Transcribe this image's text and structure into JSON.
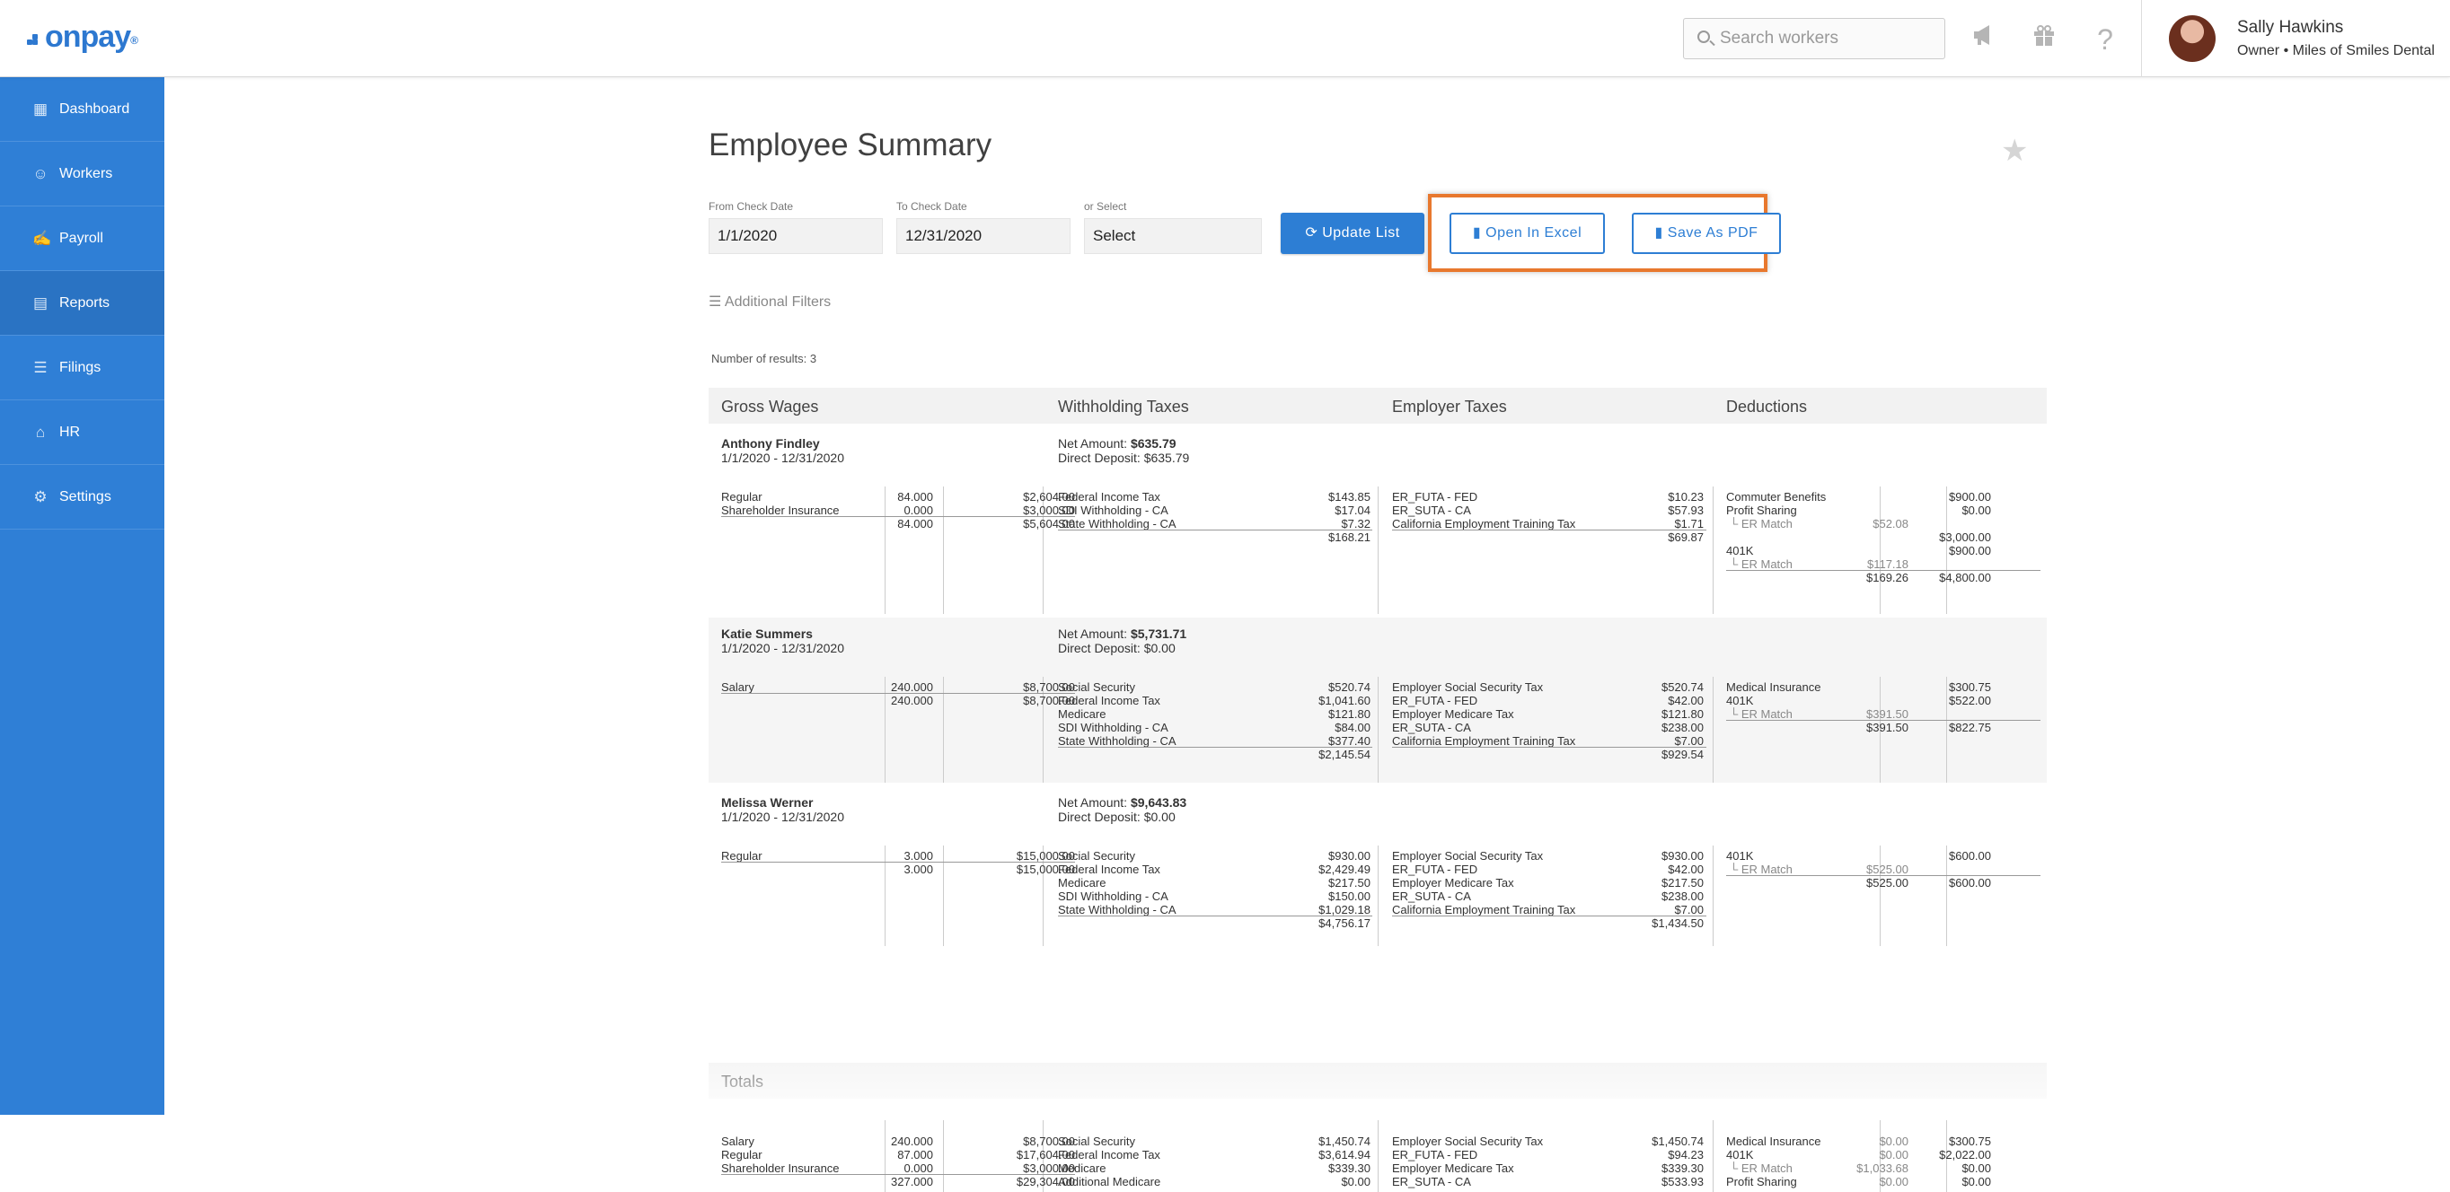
{
  "app": {
    "logo": "onpay",
    "logo_reg": "®"
  },
  "topbar": {
    "search_placeholder": "Search workers",
    "icons": [
      "megaphone-icon",
      "gift-icon",
      "help-icon"
    ],
    "user_name": "Sally Hawkins",
    "user_role": "Owner • Miles of Smiles Dental"
  },
  "sidebar": {
    "items": [
      {
        "label": "Dashboard",
        "icon": "dashboard-icon"
      },
      {
        "label": "Workers",
        "icon": "workers-icon"
      },
      {
        "label": "Payroll",
        "icon": "payroll-icon"
      },
      {
        "label": "Reports",
        "icon": "reports-icon",
        "active": true
      },
      {
        "label": "Filings",
        "icon": "filings-icon"
      },
      {
        "label": "HR",
        "icon": "hr-icon"
      },
      {
        "label": "Settings",
        "icon": "gear-icon"
      }
    ]
  },
  "page": {
    "title": "Employee Summary"
  },
  "filters": {
    "from_label": "From Check Date",
    "from_value": "1/1/2020",
    "to_label": "To Check Date",
    "to_value": "12/31/2020",
    "select_label": "or Select",
    "select_value": "Select",
    "update_label": "Update List",
    "excel_label": "Open In Excel",
    "pdf_label": "Save As PDF",
    "additional_filters": "Additional Filters",
    "results": "Number of results: 3"
  },
  "headers": {
    "gross": "Gross Wages",
    "withholding": "Withholding Taxes",
    "employer": "Employer Taxes",
    "deductions": "Deductions",
    "totals": "Totals"
  },
  "employees": [
    {
      "name": "Anthony Findley",
      "dates": "1/1/2020  -  12/31/2020",
      "net_label": "Net Amount: ",
      "net": "$635.79",
      "dd": "Direct Deposit: $635.79",
      "wages": [
        [
          "Regular",
          "84.000",
          "$2,604.00"
        ],
        [
          "Shareholder Insurance",
          "0.000",
          "$3,000.00"
        ]
      ],
      "wages_total": [
        "84.000",
        "$5,604.00"
      ],
      "withholding": [
        [
          "Federal Income Tax",
          "$143.85"
        ],
        [
          "SDI Withholding - CA",
          "$17.04"
        ],
        [
          "State Withholding - CA",
          "$7.32"
        ]
      ],
      "withholding_total": "$168.21",
      "employer": [
        [
          "ER_FUTA - FED",
          "$10.23"
        ],
        [
          "ER_SUTA - CA",
          "$57.93"
        ],
        [
          "California Employment Training Tax",
          "$1.71"
        ]
      ],
      "employer_total": "$69.87",
      "deductions": [
        [
          "Commuter Benefits",
          "",
          "$900.00"
        ],
        [
          "Profit Sharing",
          "",
          "$0.00"
        ],
        [
          "└ ER Match",
          "$52.08",
          ""
        ],
        [
          "",
          "",
          "$3,000.00"
        ],
        [
          "401K",
          "",
          "$900.00"
        ],
        [
          "└ ER Match",
          "$117.18",
          ""
        ]
      ],
      "deductions_total": [
        "$169.26",
        "$4,800.00"
      ]
    },
    {
      "name": "Katie Summers",
      "dates": "1/1/2020  -  12/31/2020",
      "net_label": "Net Amount: ",
      "net": "$5,731.71",
      "dd": "Direct Deposit: $0.00",
      "wages": [
        [
          "Salary",
          "240.000",
          "$8,700.00"
        ]
      ],
      "wages_total": [
        "240.000",
        "$8,700.00"
      ],
      "withholding": [
        [
          "Social Security",
          "$520.74"
        ],
        [
          "Federal Income Tax",
          "$1,041.60"
        ],
        [
          "Medicare",
          "$121.80"
        ],
        [
          "SDI Withholding - CA",
          "$84.00"
        ],
        [
          "State Withholding - CA",
          "$377.40"
        ]
      ],
      "withholding_total": "$2,145.54",
      "employer": [
        [
          "Employer Social Security Tax",
          "$520.74"
        ],
        [
          "ER_FUTA - FED",
          "$42.00"
        ],
        [
          "Employer Medicare Tax",
          "$121.80"
        ],
        [
          "ER_SUTA - CA",
          "$238.00"
        ],
        [
          "California Employment Training Tax",
          "$7.00"
        ]
      ],
      "employer_total": "$929.54",
      "deductions": [
        [
          "Medical Insurance",
          "",
          "$300.75"
        ],
        [
          "401K",
          "",
          "$522.00"
        ],
        [
          "└ ER Match",
          "$391.50",
          ""
        ]
      ],
      "deductions_total": [
        "$391.50",
        "$822.75"
      ]
    },
    {
      "name": "Melissa Werner",
      "dates": "1/1/2020  -  12/31/2020",
      "net_label": "Net Amount: ",
      "net": "$9,643.83",
      "dd": "Direct Deposit: $0.00",
      "wages": [
        [
          "Regular",
          "3.000",
          "$15,000.00"
        ]
      ],
      "wages_total": [
        "3.000",
        "$15,000.00"
      ],
      "withholding": [
        [
          "Social Security",
          "$930.00"
        ],
        [
          "Federal Income Tax",
          "$2,429.49"
        ],
        [
          "Medicare",
          "$217.50"
        ],
        [
          "SDI Withholding - CA",
          "$150.00"
        ],
        [
          "State Withholding - CA",
          "$1,029.18"
        ]
      ],
      "withholding_total": "$4,756.17",
      "employer": [
        [
          "Employer Social Security Tax",
          "$930.00"
        ],
        [
          "ER_FUTA - FED",
          "$42.00"
        ],
        [
          "Employer Medicare Tax",
          "$217.50"
        ],
        [
          "ER_SUTA - CA",
          "$238.00"
        ],
        [
          "California Employment Training Tax",
          "$7.00"
        ]
      ],
      "employer_total": "$1,434.50",
      "deductions": [
        [
          "401K",
          "",
          "$600.00"
        ],
        [
          "└ ER Match",
          "$525.00",
          ""
        ]
      ],
      "deductions_total": [
        "$525.00",
        "$600.00"
      ]
    }
  ],
  "totals": {
    "wages": [
      [
        "Salary",
        "240.000",
        "$8,700.00"
      ],
      [
        "Regular",
        "87.000",
        "$17,604.00"
      ],
      [
        "Shareholder Insurance",
        "0.000",
        "$3,000.00"
      ]
    ],
    "wages_total": [
      "327.000",
      "$29,304.00"
    ],
    "withholding": [
      [
        "Social Security",
        "$1,450.74"
      ],
      [
        "Federal Income Tax",
        "$3,614.94"
      ],
      [
        "Medicare",
        "$339.30"
      ],
      [
        "Additional Medicare",
        "$0.00"
      ]
    ],
    "employer": [
      [
        "Employer Social Security Tax",
        "$1,450.74"
      ],
      [
        "ER_FUTA - FED",
        "$94.23"
      ],
      [
        "Employer Medicare Tax",
        "$339.30"
      ],
      [
        "ER_SUTA - CA",
        "$533.93"
      ]
    ],
    "deductions": [
      [
        "Medical Insurance",
        "$0.00",
        "$300.75"
      ],
      [
        "401K",
        "$0.00",
        "$2,022.00"
      ],
      [
        "└ ER Match",
        "$1,033.68",
        "$0.00"
      ],
      [
        "Profit Sharing",
        "$0.00",
        "$0.00"
      ]
    ]
  }
}
